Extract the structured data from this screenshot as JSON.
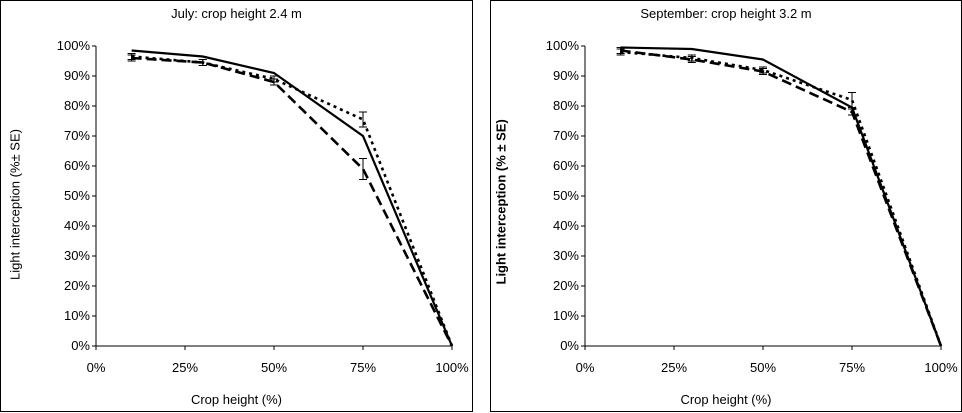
{
  "chart_data": [
    {
      "type": "line",
      "title": "July: crop height 2.4 m",
      "xlabel": "Crop height (%)",
      "ylabel": "Light interception (%± SE)",
      "xlim": [
        0,
        100
      ],
      "ylim": [
        0,
        100
      ],
      "x_ticks": [
        "0%",
        "25%",
        "50%",
        "75%",
        "100%"
      ],
      "y_ticks": [
        "0%",
        "10%",
        "20%",
        "30%",
        "40%",
        "50%",
        "60%",
        "70%",
        "80%",
        "90%",
        "100%"
      ],
      "series": [
        {
          "style": "solid",
          "x": [
            10,
            30,
            50,
            75,
            100
          ],
          "y": [
            98.5,
            96.5,
            91,
            70,
            0
          ],
          "err": [
            0,
            0,
            0,
            0,
            0
          ]
        },
        {
          "style": "dotted",
          "x": [
            10,
            30,
            50,
            75,
            100
          ],
          "y": [
            96.5,
            94.5,
            89,
            75.5,
            0
          ],
          "err": [
            1,
            1,
            1,
            2.5,
            0
          ]
        },
        {
          "style": "dashed",
          "x": [
            10,
            30,
            50,
            75,
            100
          ],
          "y": [
            96,
            94.5,
            88,
            59,
            0
          ],
          "err": [
            1,
            1,
            1,
            3.5,
            0
          ]
        }
      ]
    },
    {
      "type": "line",
      "title": "September: crop height 3.2 m",
      "xlabel": "Crop height (%)",
      "ylabel": "Light interception (% ± SE)",
      "xlim": [
        0,
        100
      ],
      "ylim": [
        0,
        100
      ],
      "x_ticks": [
        "0%",
        "25%",
        "50%",
        "75%",
        "100%"
      ],
      "y_ticks": [
        "0%",
        "10%",
        "20%",
        "30%",
        "40%",
        "50%",
        "60%",
        "70%",
        "80%",
        "90%",
        "100%"
      ],
      "series": [
        {
          "style": "solid",
          "x": [
            10,
            30,
            50,
            75,
            100
          ],
          "y": [
            99.5,
            99,
            95.5,
            79.5,
            0
          ],
          "err": [
            0,
            0,
            0,
            0,
            0
          ]
        },
        {
          "style": "dotted",
          "x": [
            10,
            30,
            50,
            75,
            100
          ],
          "y": [
            98,
            96,
            92,
            82,
            0
          ],
          "err": [
            1,
            1,
            1,
            2.5,
            0
          ]
        },
        {
          "style": "dashed",
          "x": [
            10,
            30,
            50,
            75,
            100
          ],
          "y": [
            98.5,
            95.5,
            91.5,
            78,
            0
          ],
          "err": [
            1,
            1,
            1,
            1,
            0
          ]
        }
      ]
    }
  ]
}
